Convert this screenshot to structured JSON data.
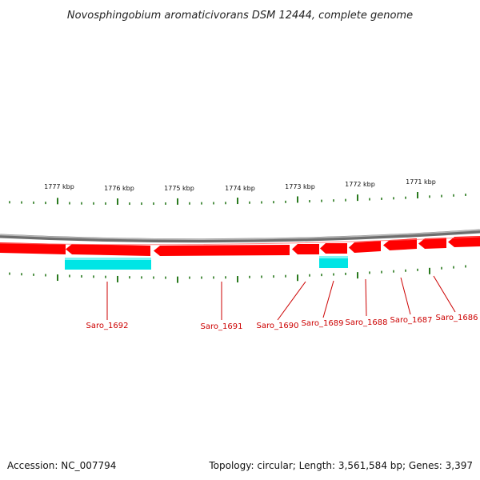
{
  "title": "Novosphingobium aromaticivorans DSM 12444, complete genome",
  "footer": {
    "accession": "Accession: NC_007794",
    "summary": "Topology: circular; Length: 3,561,584 bp; Genes: 3,397"
  },
  "colors": {
    "backbone": "#8a8a8a",
    "gene_forward": "#ff0000",
    "gene_highlight": "#00e5e5",
    "tick": "#2a7a1e",
    "gene_label": "#cc0000"
  },
  "scale_labels": [
    "1777 kbp",
    "1776 kbp",
    "1775 kbp",
    "1774 kbp",
    "1773 kbp",
    "1772 kbp",
    "1771 kbp"
  ],
  "genes": [
    {
      "name": "Saro_1692",
      "strand": "-",
      "highlighted": true
    },
    {
      "name": "Saro_1691",
      "strand": "-",
      "highlighted": false
    },
    {
      "name": "Saro_1690",
      "strand": "-",
      "highlighted": false
    },
    {
      "name": "Saro_1689",
      "strand": "-",
      "highlighted": true
    },
    {
      "name": "Saro_1688",
      "strand": "-",
      "highlighted": false
    },
    {
      "name": "Saro_1687",
      "strand": "-",
      "highlighted": false
    },
    {
      "name": "Saro_1686",
      "strand": "-",
      "highlighted": false
    }
  ]
}
